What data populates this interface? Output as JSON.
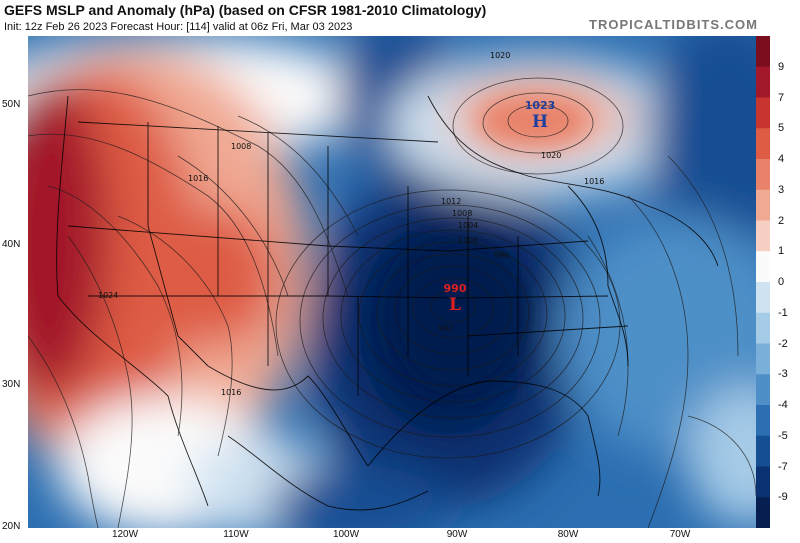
{
  "header": {
    "title": "GEFS MSLP and Anomaly (hPa) (based on CFSR 1981-2010 Climatology)",
    "subtitle": "Init: 12z Feb 26 2023   Forecast Hour: [114]   valid at 06z Fri, Mar 03 2023",
    "brand": "TROPICALTIDBITS.COM"
  },
  "axes": {
    "lat_labels": [
      "50N",
      "40N",
      "30N",
      "20N"
    ],
    "lon_labels": [
      "120W",
      "110W",
      "100W",
      "90W",
      "80W",
      "70W"
    ]
  },
  "colorbar": {
    "ticks": [
      "9",
      "7",
      "5",
      "4",
      "3",
      "2",
      "1",
      "0",
      "-1",
      "-2",
      "-3",
      "-4",
      "-5",
      "-7",
      "-9"
    ],
    "colors": [
      "#7a0e1e",
      "#a3172a",
      "#c8352e",
      "#de5b44",
      "#e8826b",
      "#f0a993",
      "#f7d0c3",
      "#fbfbfb",
      "#cfe2f1",
      "#a6cbe7",
      "#79afd9",
      "#4e8fc7",
      "#2b6eb1",
      "#144e93",
      "#0a3272",
      "#061f50"
    ]
  },
  "map": {
    "high_center": {
      "pressure": "1023",
      "symbol": "H",
      "color": "#1e3f9e"
    },
    "low_center": {
      "pressure": "990",
      "symbol": "L",
      "color": "#e02020"
    },
    "isobar_labels": [
      "1020",
      "1020",
      "1008",
      "1012",
      "1016",
      "1016",
      "1024",
      "1016",
      "1008",
      "1004",
      "1000",
      "996",
      "992"
    ]
  }
}
